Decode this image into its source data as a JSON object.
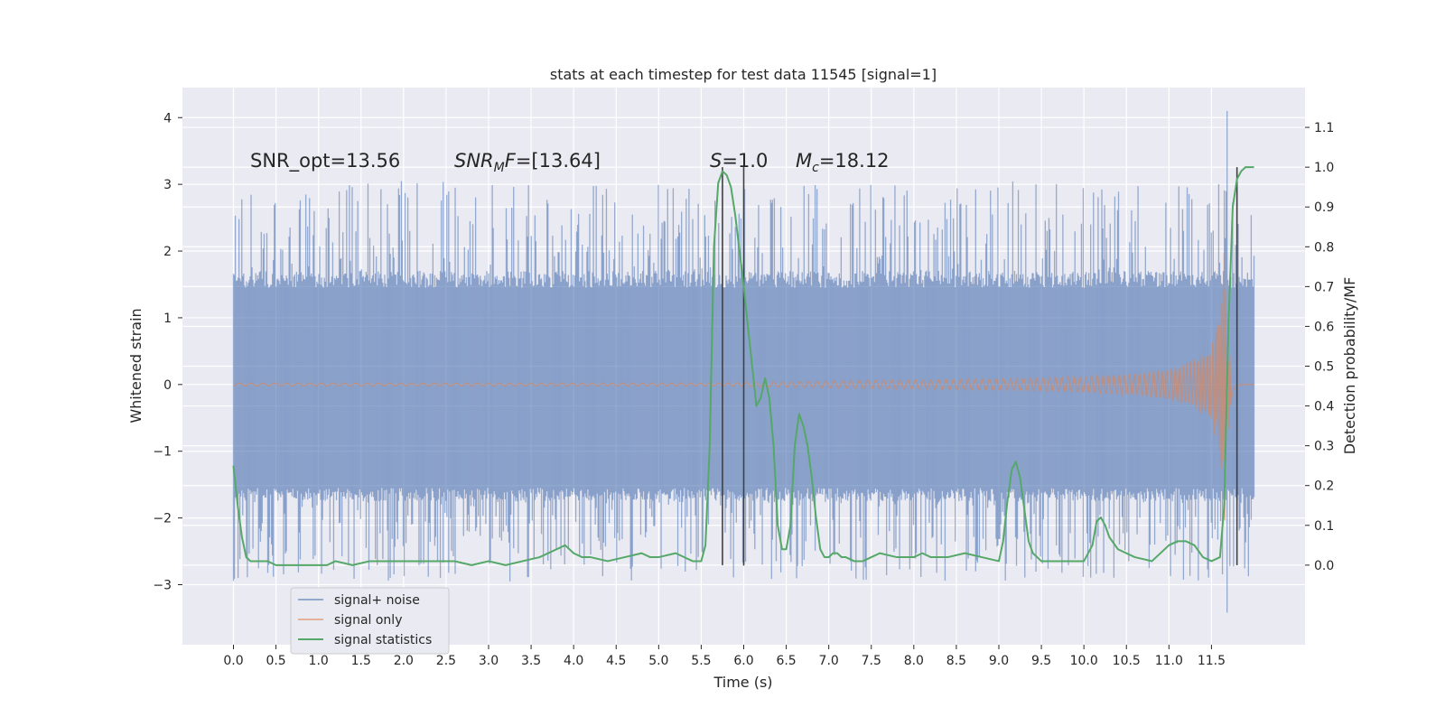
{
  "chart_data": {
    "type": "line",
    "title": "stats at each timestep for test data 11545 [signal=1]",
    "xlabel": "Time (s)",
    "ylabel_left": "Whitened strain",
    "ylabel_right": "Detection probability/MF",
    "xlim": [
      -0.6,
      12.6
    ],
    "ylim_left": [
      -3.9,
      4.45
    ],
    "ylim_right": [
      -0.2,
      1.2
    ],
    "x_ticks": [
      0.0,
      0.5,
      1.0,
      1.5,
      2.0,
      2.5,
      3.0,
      3.5,
      4.0,
      4.5,
      5.0,
      5.5,
      6.0,
      6.5,
      7.0,
      7.5,
      8.0,
      8.5,
      9.0,
      9.5,
      10.0,
      10.5,
      11.0,
      11.5
    ],
    "x_tick_labels": [
      "0.0",
      "0.5",
      "1.0",
      "1.5",
      "2.0",
      "2.5",
      "3.0",
      "3.5",
      "4.0",
      "4.5",
      "5.0",
      "5.5",
      "6.0",
      "6.5",
      "7.0",
      "7.5",
      "8.0",
      "8.5",
      "9.0",
      "9.5",
      "10.0",
      "10.5",
      "11.0",
      "11.5"
    ],
    "y_left_ticks": [
      -3,
      -2,
      -1,
      0,
      1,
      2,
      3,
      4
    ],
    "y_left_tick_labels": [
      "−3",
      "−2",
      "−1",
      "0",
      "1",
      "2",
      "3",
      "4"
    ],
    "y_right_ticks": [
      0.0,
      0.1,
      0.2,
      0.3,
      0.4,
      0.5,
      0.6,
      0.7,
      0.8,
      0.9,
      1.0,
      1.1
    ],
    "y_right_tick_labels": [
      "0.0",
      "0.1",
      "0.2",
      "0.3",
      "0.4",
      "0.5",
      "0.6",
      "0.7",
      "0.8",
      "0.9",
      "1.0",
      "1.1"
    ],
    "grid": true,
    "legend_position": "lower-left",
    "background": "#eaeaf2",
    "series": [
      {
        "name": "signal+ noise",
        "color": "#4c72b0",
        "axis": "left",
        "description_values": {
          "t_range": [
            0.0,
            12.0
          ],
          "band_typical": [
            -1.55,
            1.45
          ],
          "extreme_max": 4.1,
          "extreme_min": -3.42,
          "extreme_time": 11.68
        }
      },
      {
        "name": "signal only",
        "color": "#dd8452",
        "axis": "left",
        "description_values": {
          "t_range": [
            0.0,
            12.0
          ],
          "envelope_growth_start": 7.0,
          "peak_time": 11.68,
          "peak_amplitude": 2.5
        }
      },
      {
        "name": "signal statistics",
        "color": "#55a868",
        "axis": "right",
        "x": [
          0.0,
          0.05,
          0.1,
          0.15,
          0.2,
          0.25,
          0.3,
          0.35,
          0.4,
          0.5,
          0.6,
          0.8,
          1.0,
          1.1,
          1.2,
          1.4,
          1.6,
          1.8,
          2.0,
          2.2,
          2.4,
          2.6,
          2.8,
          3.0,
          3.2,
          3.4,
          3.6,
          3.8,
          3.9,
          4.0,
          4.1,
          4.2,
          4.4,
          4.6,
          4.8,
          4.9,
          5.0,
          5.2,
          5.4,
          5.5,
          5.55,
          5.6,
          5.65,
          5.7,
          5.75,
          5.8,
          5.85,
          5.9,
          6.0,
          6.1,
          6.15,
          6.2,
          6.25,
          6.3,
          6.35,
          6.4,
          6.45,
          6.5,
          6.55,
          6.6,
          6.65,
          6.7,
          6.75,
          6.8,
          6.85,
          6.9,
          6.95,
          7.0,
          7.05,
          7.1,
          7.15,
          7.2,
          7.3,
          7.4,
          7.5,
          7.6,
          7.8,
          8.0,
          8.1,
          8.2,
          8.4,
          8.6,
          8.8,
          9.0,
          9.05,
          9.1,
          9.15,
          9.2,
          9.25,
          9.3,
          9.35,
          9.4,
          9.5,
          9.6,
          9.8,
          10.0,
          10.1,
          10.15,
          10.2,
          10.25,
          10.3,
          10.4,
          10.6,
          10.8,
          11.0,
          11.1,
          11.2,
          11.3,
          11.4,
          11.5,
          11.6,
          11.65,
          11.7,
          11.75,
          11.8,
          11.85,
          11.9,
          11.95,
          12.0
        ],
        "values": [
          0.25,
          0.15,
          0.07,
          0.02,
          0.01,
          0.01,
          0.01,
          0.01,
          0.01,
          0.0,
          0.0,
          0.0,
          0.0,
          0.0,
          0.01,
          0.0,
          0.01,
          0.01,
          0.01,
          0.01,
          0.01,
          0.01,
          0.0,
          0.01,
          0.0,
          0.01,
          0.02,
          0.04,
          0.05,
          0.03,
          0.02,
          0.02,
          0.01,
          0.02,
          0.03,
          0.02,
          0.02,
          0.03,
          0.01,
          0.01,
          0.05,
          0.3,
          0.8,
          0.96,
          0.99,
          0.98,
          0.95,
          0.88,
          0.7,
          0.5,
          0.4,
          0.42,
          0.47,
          0.42,
          0.3,
          0.1,
          0.04,
          0.04,
          0.1,
          0.3,
          0.38,
          0.35,
          0.3,
          0.22,
          0.12,
          0.04,
          0.02,
          0.02,
          0.03,
          0.03,
          0.02,
          0.02,
          0.01,
          0.01,
          0.02,
          0.03,
          0.02,
          0.02,
          0.03,
          0.02,
          0.02,
          0.03,
          0.02,
          0.01,
          0.06,
          0.16,
          0.24,
          0.26,
          0.22,
          0.14,
          0.06,
          0.03,
          0.01,
          0.01,
          0.01,
          0.01,
          0.05,
          0.11,
          0.12,
          0.1,
          0.07,
          0.04,
          0.02,
          0.01,
          0.05,
          0.06,
          0.06,
          0.05,
          0.02,
          0.01,
          0.02,
          0.15,
          0.6,
          0.9,
          0.97,
          0.99,
          1.0,
          1.0,
          1.0
        ]
      }
    ],
    "vertical_markers": [
      5.75,
      6.0,
      11.8
    ],
    "vertical_marker_color": "#404040",
    "annotations": [
      {
        "id": "snr-opt",
        "text": "SNR_opt=13.56",
        "x": 0.2,
        "y": 3.33
      },
      {
        "id": "snr-mf",
        "text": "SNR_MF=[13.64]",
        "x": 2.6,
        "y": 3.33
      },
      {
        "id": "s-value",
        "text": "S=1.0",
        "x": 5.6,
        "y": 3.33
      },
      {
        "id": "mc-value",
        "text": "M_c=18.12",
        "x": 6.6,
        "y": 3.33
      }
    ]
  }
}
